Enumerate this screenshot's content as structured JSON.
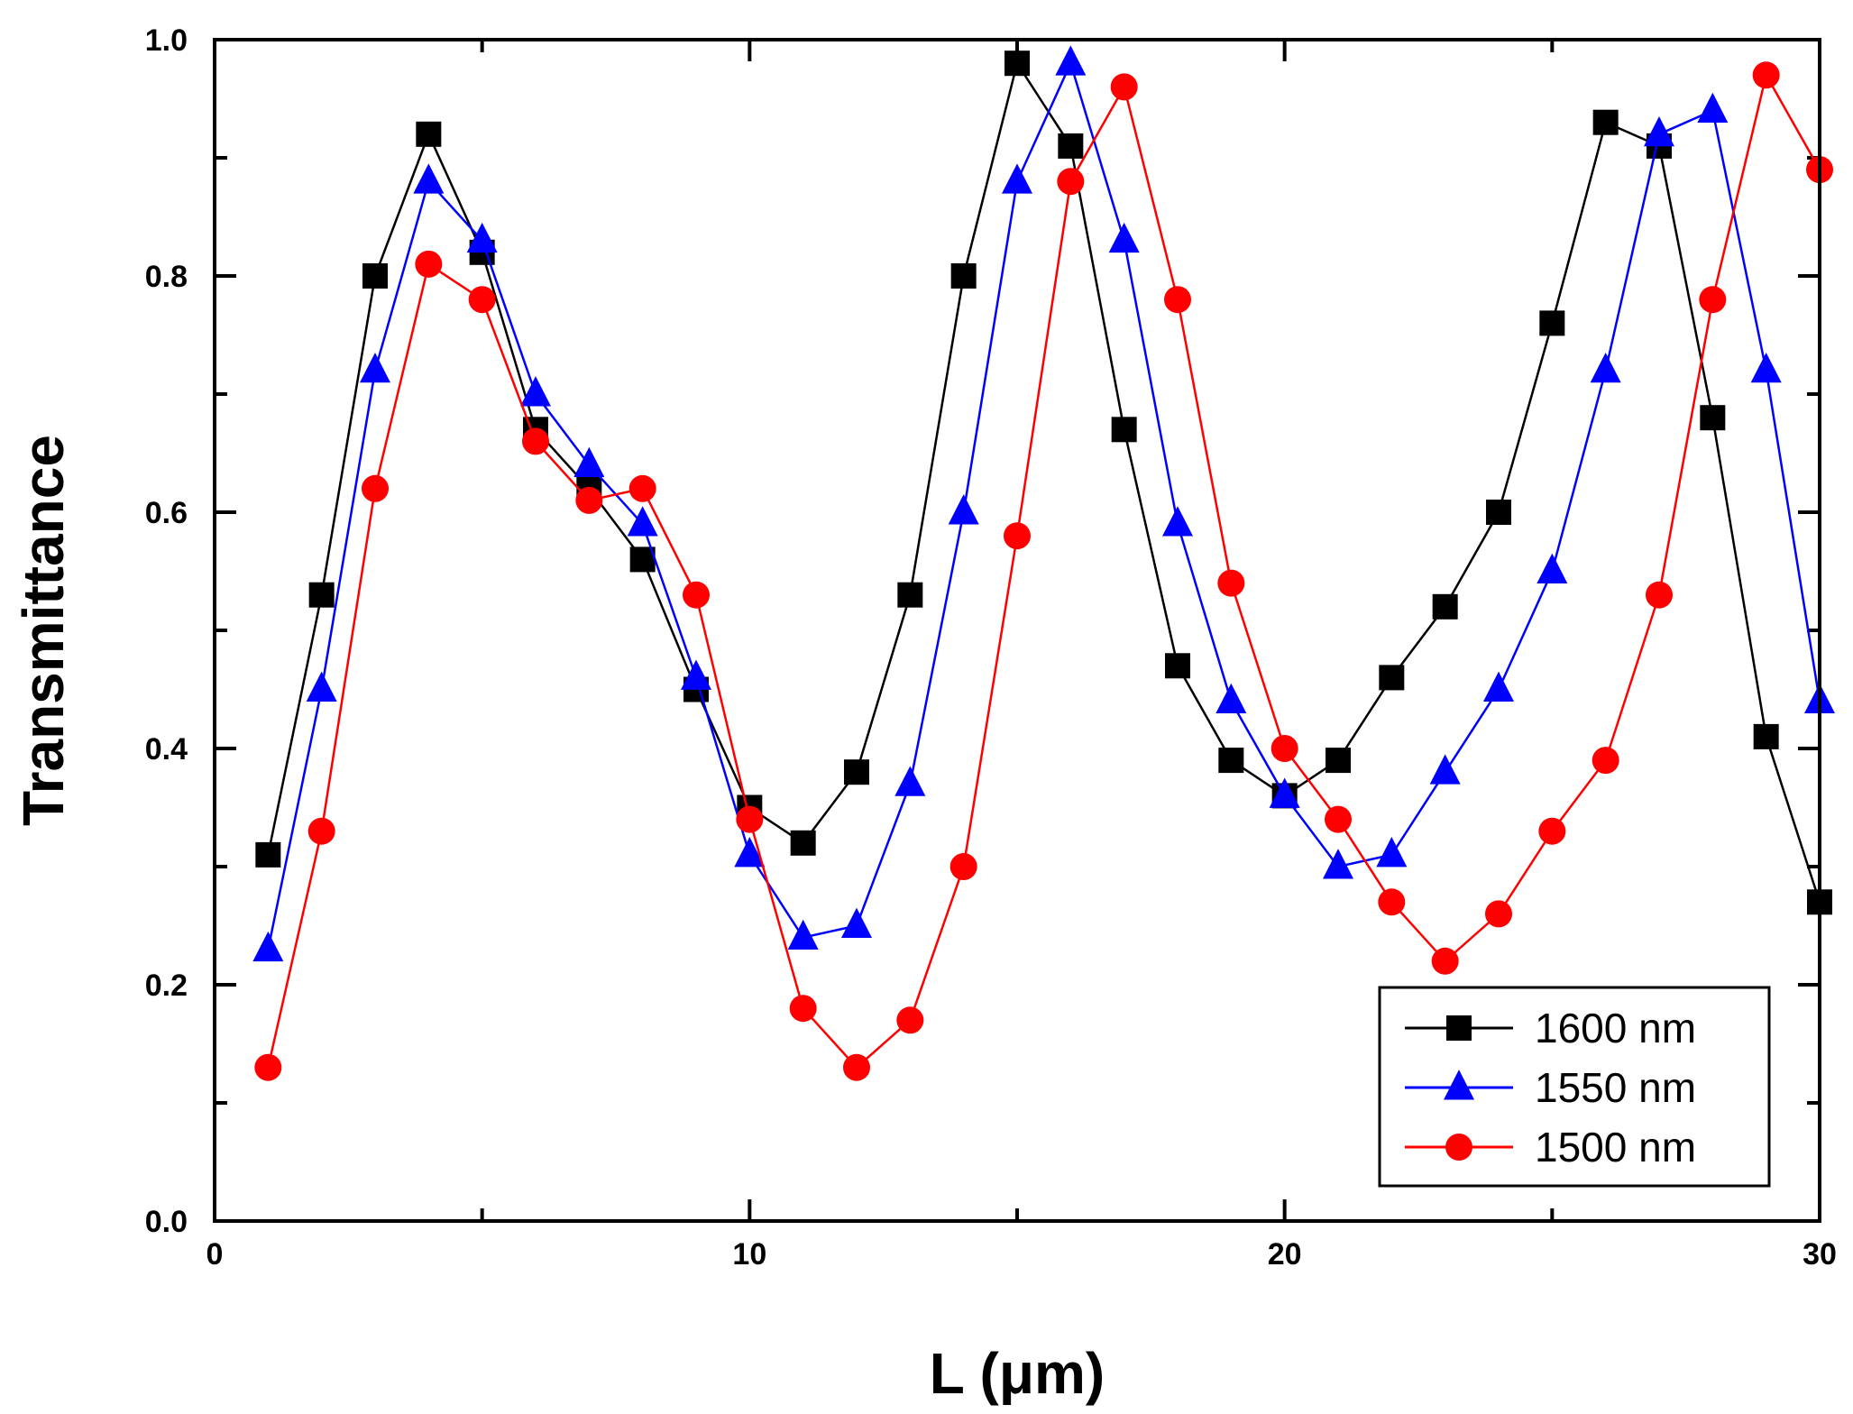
{
  "chart_data": {
    "type": "line",
    "title": "",
    "xlabel": "L (μm)",
    "ylabel": "Transmittance",
    "xlim": [
      0,
      30
    ],
    "ylim": [
      0,
      1.0
    ],
    "xticks": [
      0,
      10,
      20,
      30
    ],
    "xtick_labels": [
      "0",
      "10",
      "20",
      "30"
    ],
    "yticks": [
      0.0,
      0.2,
      0.4,
      0.6,
      0.8,
      1.0
    ],
    "ytick_labels": [
      "0.0",
      "0.2",
      "0.4",
      "0.6",
      "0.8",
      "1.0"
    ],
    "grid": false,
    "legend_position": "bottom-right",
    "x": [
      1,
      2,
      3,
      4,
      5,
      6,
      7,
      8,
      9,
      10,
      11,
      12,
      13,
      14,
      15,
      16,
      17,
      18,
      19,
      20,
      21,
      22,
      23,
      24,
      25,
      26,
      27,
      28,
      29,
      30
    ],
    "series": [
      {
        "name": "1600 nm",
        "color": "#000000",
        "marker": "square",
        "values": [
          0.31,
          0.53,
          0.8,
          0.92,
          0.82,
          0.67,
          0.62,
          0.56,
          0.45,
          0.35,
          0.32,
          0.38,
          0.53,
          0.8,
          0.98,
          0.91,
          0.67,
          0.47,
          0.39,
          0.36,
          0.39,
          0.46,
          0.52,
          0.6,
          0.76,
          0.93,
          0.91,
          0.68,
          0.41,
          0.27
        ]
      },
      {
        "name": "1550 nm",
        "color": "#0000ff",
        "marker": "triangle",
        "values": [
          0.23,
          0.45,
          0.72,
          0.88,
          0.83,
          0.7,
          0.64,
          0.59,
          0.46,
          0.31,
          0.24,
          0.25,
          0.37,
          0.6,
          0.88,
          0.98,
          0.83,
          0.59,
          0.44,
          0.36,
          0.3,
          0.31,
          0.38,
          0.45,
          0.55,
          0.72,
          0.92,
          0.94,
          0.72,
          0.44
        ]
      },
      {
        "name": "1500 nm",
        "color": "#ff0000",
        "marker": "circle",
        "values": [
          0.13,
          0.33,
          0.62,
          0.81,
          0.78,
          0.66,
          0.61,
          0.62,
          0.53,
          0.34,
          0.18,
          0.13,
          0.17,
          0.3,
          0.58,
          0.88,
          0.96,
          0.78,
          0.54,
          0.4,
          0.34,
          0.27,
          0.22,
          0.26,
          0.33,
          0.39,
          0.53,
          0.78,
          0.97,
          0.89
        ]
      }
    ]
  }
}
